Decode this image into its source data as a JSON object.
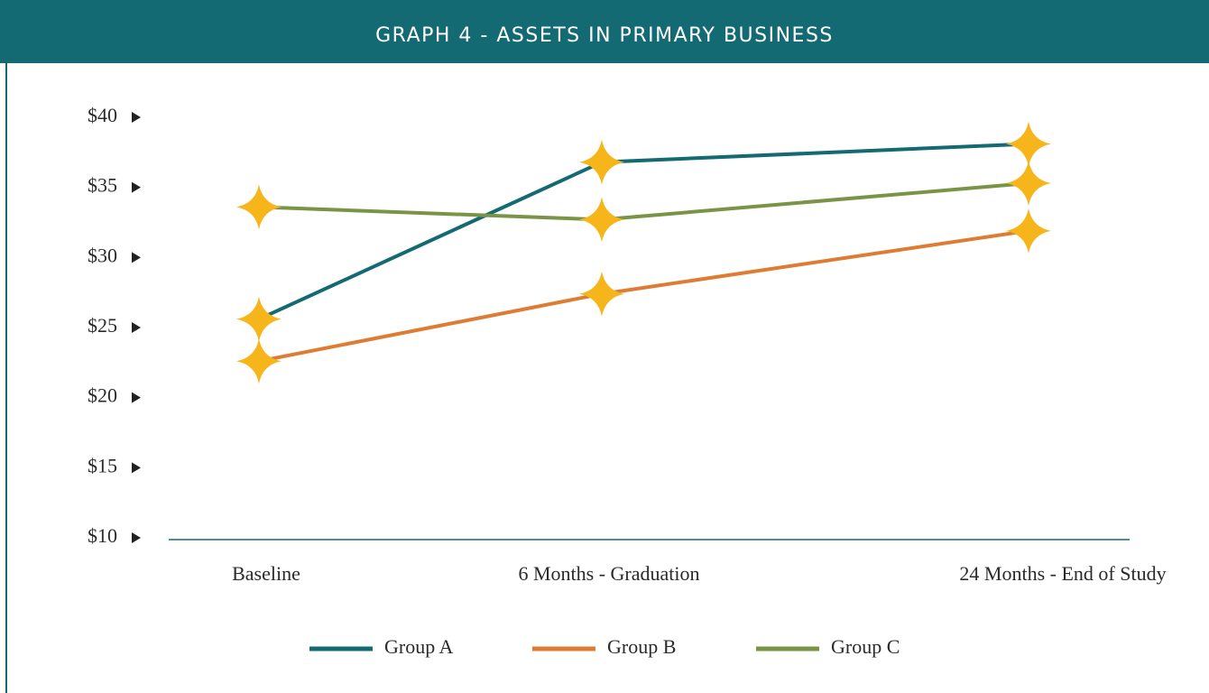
{
  "chart_data": {
    "type": "line",
    "title": "GRAPH 4 - ASSETS IN PRIMARY BUSINESS",
    "categories": [
      "Baseline",
      "6 Months - Graduation",
      "24 Months - End of Study"
    ],
    "series": [
      {
        "name": "Group A",
        "color": "#136a72",
        "values": [
          25.6,
          36.8,
          38.1
        ]
      },
      {
        "name": "Group B",
        "color": "#de7c34",
        "values": [
          22.6,
          27.4,
          31.9
        ]
      },
      {
        "name": "Group C",
        "color": "#7a9446",
        "values": [
          33.6,
          32.7,
          35.3
        ]
      }
    ],
    "marker_color": "#f7b51c",
    "ylim": [
      10,
      40
    ],
    "yticks": [
      {
        "value": 10,
        "label": "$10"
      },
      {
        "value": 15,
        "label": "$15"
      },
      {
        "value": 20,
        "label": "$20"
      },
      {
        "value": 25,
        "label": "$25"
      },
      {
        "value": 30,
        "label": "$30"
      },
      {
        "value": 35,
        "label": "$35"
      },
      {
        "value": 40,
        "label": "$40"
      }
    ],
    "grid": false
  }
}
